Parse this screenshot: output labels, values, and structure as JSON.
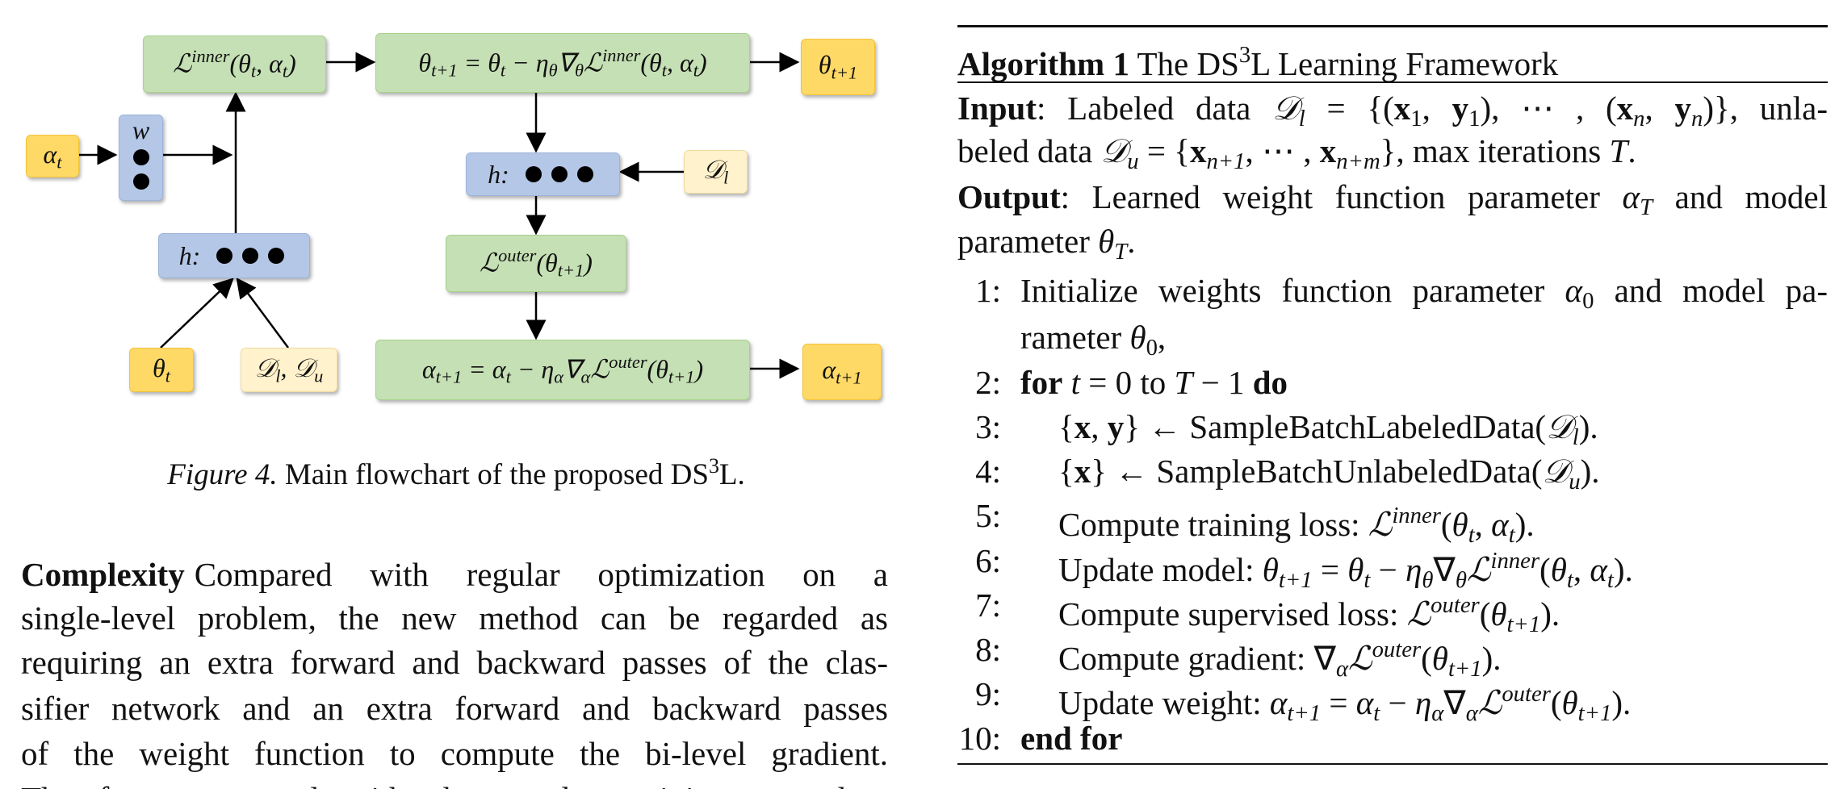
{
  "figure": {
    "nodes": {
      "inner": [
        {
          "t": "ℒ"
        },
        {
          "t": "inner",
          "s": "sup"
        },
        {
          "t": "(θ"
        },
        {
          "t": "t",
          "s": "sub"
        },
        {
          "t": ", α"
        },
        {
          "t": "t",
          "s": "sub"
        },
        {
          "t": ")"
        }
      ],
      "update_theta": [
        {
          "t": "θ"
        },
        {
          "t": "t+1",
          "s": "sub"
        },
        {
          "t": " = θ"
        },
        {
          "t": "t",
          "s": "sub"
        },
        {
          "t": " − η"
        },
        {
          "t": "θ",
          "s": "sub"
        },
        {
          "t": "∇"
        },
        {
          "t": "θ",
          "s": "sub"
        },
        {
          "t": "ℒ"
        },
        {
          "t": "inner",
          "s": "sup"
        },
        {
          "t": "(θ"
        },
        {
          "t": "t",
          "s": "sub"
        },
        {
          "t": ", α"
        },
        {
          "t": "t",
          "s": "sub"
        },
        {
          "t": ")"
        }
      ],
      "theta_next": [
        {
          "t": "θ"
        },
        {
          "t": "t+1",
          "s": "sub"
        }
      ],
      "alpha_t": [
        {
          "t": "α"
        },
        {
          "t": "t",
          "s": "sub"
        }
      ],
      "w": [
        {
          "t": "w"
        }
      ],
      "h_left": [
        {
          "t": "h:"
        }
      ],
      "theta_t": [
        {
          "t": "θ"
        },
        {
          "t": "t",
          "s": "sub"
        }
      ],
      "dl_du": [
        {
          "t": "𝒟"
        },
        {
          "t": "l",
          "s": "sub"
        },
        {
          "t": ", 𝒟"
        },
        {
          "t": "u",
          "s": "sub"
        }
      ],
      "h_right": [
        {
          "t": "h:"
        }
      ],
      "dl": [
        {
          "t": "𝒟"
        },
        {
          "t": "l",
          "s": "sub"
        }
      ],
      "outer": [
        {
          "t": "ℒ"
        },
        {
          "t": "outer",
          "s": "sup"
        },
        {
          "t": "(θ"
        },
        {
          "t": "t+1",
          "s": "sub"
        },
        {
          "t": ")"
        }
      ],
      "update_alpha": [
        {
          "t": "α"
        },
        {
          "t": "t+1",
          "s": "sub"
        },
        {
          "t": " = α"
        },
        {
          "t": "t",
          "s": "sub"
        },
        {
          "t": " − η"
        },
        {
          "t": "α",
          "s": "sub"
        },
        {
          "t": "∇"
        },
        {
          "t": "α",
          "s": "sub"
        },
        {
          "t": "ℒ"
        },
        {
          "t": "outer",
          "s": "sup"
        },
        {
          "t": "(θ"
        },
        {
          "t": "t+1",
          "s": "sub"
        },
        {
          "t": ")"
        }
      ],
      "alpha_next": [
        {
          "t": "α"
        },
        {
          "t": "t+1",
          "s": "sub"
        }
      ]
    },
    "caption": [
      {
        "t": "Figure 4.",
        "s": "i"
      },
      {
        "t": " Main flowchart of the proposed DS"
      },
      {
        "t": "3",
        "s": "sup"
      },
      {
        "t": "L."
      }
    ]
  },
  "complexity": {
    "heading": "Complexity",
    "lines": [
      "Compared with regular optimization on a",
      "single-level problem, the new method can be regarded as",
      "requiring an extra forward and backward passes of the clas-",
      "sifier network and an extra forward and backward passes",
      "of the weight function to compute the bi-level gradient.",
      "Therefore, compared with the regular training procedure"
    ]
  },
  "algorithm": {
    "title": [
      {
        "t": "Algorithm 1",
        "s": "b"
      },
      {
        "t": " The DS"
      },
      {
        "t": "3",
        "s": "sup"
      },
      {
        "t": "L Learning Framework"
      }
    ],
    "input": [
      [
        {
          "t": "Input",
          "s": "b"
        },
        {
          "t": ": Labeled data "
        },
        {
          "t": "𝒟",
          "s": "i"
        },
        {
          "t": "l",
          "s": "sub i"
        },
        {
          "t": " = {("
        },
        {
          "t": "x",
          "s": "b"
        },
        {
          "t": "1",
          "s": "sub"
        },
        {
          "t": ", "
        },
        {
          "t": "y",
          "s": "b"
        },
        {
          "t": "1",
          "s": "sub"
        },
        {
          "t": "), ⋯ , ("
        },
        {
          "t": "x",
          "s": "b"
        },
        {
          "t": "n",
          "s": "sub i"
        },
        {
          "t": ", "
        },
        {
          "t": "y",
          "s": "b"
        },
        {
          "t": "n",
          "s": "sub i"
        },
        {
          "t": ")}, unla-"
        }
      ],
      [
        {
          "t": "beled data "
        },
        {
          "t": "𝒟",
          "s": "i"
        },
        {
          "t": "u",
          "s": "sub i"
        },
        {
          "t": " = {"
        },
        {
          "t": "x",
          "s": "b"
        },
        {
          "t": "n+1",
          "s": "sub i"
        },
        {
          "t": ", ⋯ , "
        },
        {
          "t": "x",
          "s": "b"
        },
        {
          "t": "n+m",
          "s": "sub i"
        },
        {
          "t": "}, max iterations "
        },
        {
          "t": "T",
          "s": "i"
        },
        {
          "t": "."
        }
      ]
    ],
    "output": [
      [
        {
          "t": "Output",
          "s": "b"
        },
        {
          "t": ": Learned weight function parameter "
        },
        {
          "t": "α",
          "s": "i"
        },
        {
          "t": "T",
          "s": "sub i"
        },
        {
          "t": " and model"
        }
      ],
      [
        {
          "t": "parameter "
        },
        {
          "t": "θ",
          "s": "i"
        },
        {
          "t": "T",
          "s": "sub i"
        },
        {
          "t": "."
        }
      ]
    ],
    "steps": [
      {
        "num": "1:",
        "lines": [
          [
            {
              "t": "Initialize weights function parameter "
            },
            {
              "t": "α",
              "s": "i"
            },
            {
              "t": "0",
              "s": "sub"
            },
            {
              "t": " and model pa-"
            }
          ],
          [
            {
              "t": "rameter "
            },
            {
              "t": "θ",
              "s": "i"
            },
            {
              "t": "0",
              "s": "sub"
            },
            {
              "t": ","
            }
          ]
        ]
      },
      {
        "num": "2:",
        "lines": [
          [
            {
              "t": "for",
              "s": "b"
            },
            {
              "t": " "
            },
            {
              "t": "t",
              "s": "i"
            },
            {
              "t": " = 0 to "
            },
            {
              "t": "T",
              "s": "i"
            },
            {
              "t": " − 1 "
            },
            {
              "t": "do",
              "s": "b"
            }
          ]
        ]
      },
      {
        "num": "3:",
        "lines": [
          [
            {
              "t": "{"
            },
            {
              "t": "x",
              "s": "b"
            },
            {
              "t": ", "
            },
            {
              "t": "y",
              "s": "b"
            },
            {
              "t": "} ← SampleBatchLabeledData("
            },
            {
              "t": "𝒟",
              "s": "i"
            },
            {
              "t": "l",
              "s": "sub i"
            },
            {
              "t": ")."
            }
          ]
        ]
      },
      {
        "num": "4:",
        "lines": [
          [
            {
              "t": "{"
            },
            {
              "t": "x",
              "s": "b"
            },
            {
              "t": "} ← SampleBatchUnlabeledData("
            },
            {
              "t": "𝒟",
              "s": "i"
            },
            {
              "t": "u",
              "s": "sub i"
            },
            {
              "t": ")."
            }
          ]
        ]
      },
      {
        "num": "5:",
        "lines": [
          [
            {
              "t": "Compute training loss: "
            },
            {
              "t": "ℒ",
              "s": "i"
            },
            {
              "t": "inner",
              "s": "sup i"
            },
            {
              "t": "("
            },
            {
              "t": "θ",
              "s": "i"
            },
            {
              "t": "t",
              "s": "sub i"
            },
            {
              "t": ", "
            },
            {
              "t": "α",
              "s": "i"
            },
            {
              "t": "t",
              "s": "sub i"
            },
            {
              "t": ")."
            }
          ]
        ]
      },
      {
        "num": "6:",
        "lines": [
          [
            {
              "t": "Update model: "
            },
            {
              "t": "θ",
              "s": "i"
            },
            {
              "t": "t+1",
              "s": "sub i"
            },
            {
              "t": " = "
            },
            {
              "t": "θ",
              "s": "i"
            },
            {
              "t": "t",
              "s": "sub i"
            },
            {
              "t": " − "
            },
            {
              "t": "η",
              "s": "i"
            },
            {
              "t": "θ",
              "s": "sub i"
            },
            {
              "t": "∇"
            },
            {
              "t": "θ",
              "s": "sub i"
            },
            {
              "t": "ℒ",
              "s": "i"
            },
            {
              "t": "inner",
              "s": "sup i"
            },
            {
              "t": "("
            },
            {
              "t": "θ",
              "s": "i"
            },
            {
              "t": "t",
              "s": "sub i"
            },
            {
              "t": ", "
            },
            {
              "t": "α",
              "s": "i"
            },
            {
              "t": "t",
              "s": "sub i"
            },
            {
              "t": ")."
            }
          ]
        ]
      },
      {
        "num": "7:",
        "lines": [
          [
            {
              "t": "Compute supervised loss: "
            },
            {
              "t": "ℒ",
              "s": "i"
            },
            {
              "t": "outer",
              "s": "sup i"
            },
            {
              "t": "("
            },
            {
              "t": "θ",
              "s": "i"
            },
            {
              "t": "t+1",
              "s": "sub i"
            },
            {
              "t": ")."
            }
          ]
        ]
      },
      {
        "num": "8:",
        "lines": [
          [
            {
              "t": "Compute gradient: ∇"
            },
            {
              "t": "α",
              "s": "sub i"
            },
            {
              "t": "ℒ",
              "s": "i"
            },
            {
              "t": "outer",
              "s": "sup i"
            },
            {
              "t": "("
            },
            {
              "t": "θ",
              "s": "i"
            },
            {
              "t": "t+1",
              "s": "sub i"
            },
            {
              "t": ")."
            }
          ]
        ]
      },
      {
        "num": "9:",
        "lines": [
          [
            {
              "t": "Update weight: "
            },
            {
              "t": "α",
              "s": "i"
            },
            {
              "t": "t+1",
              "s": "sub i"
            },
            {
              "t": " = "
            },
            {
              "t": "α",
              "s": "i"
            },
            {
              "t": "t",
              "s": "sub i"
            },
            {
              "t": " − "
            },
            {
              "t": "η",
              "s": "i"
            },
            {
              "t": "α",
              "s": "sub i"
            },
            {
              "t": "∇"
            },
            {
              "t": "α",
              "s": "sub i"
            },
            {
              "t": "ℒ",
              "s": "i"
            },
            {
              "t": "outer",
              "s": "sup i"
            },
            {
              "t": "("
            },
            {
              "t": "θ",
              "s": "i"
            },
            {
              "t": "t+1",
              "s": "sub i"
            },
            {
              "t": ")."
            }
          ]
        ]
      },
      {
        "num": "10:",
        "lines": [
          [
            {
              "t": "end for",
              "s": "b"
            }
          ]
        ]
      }
    ]
  }
}
